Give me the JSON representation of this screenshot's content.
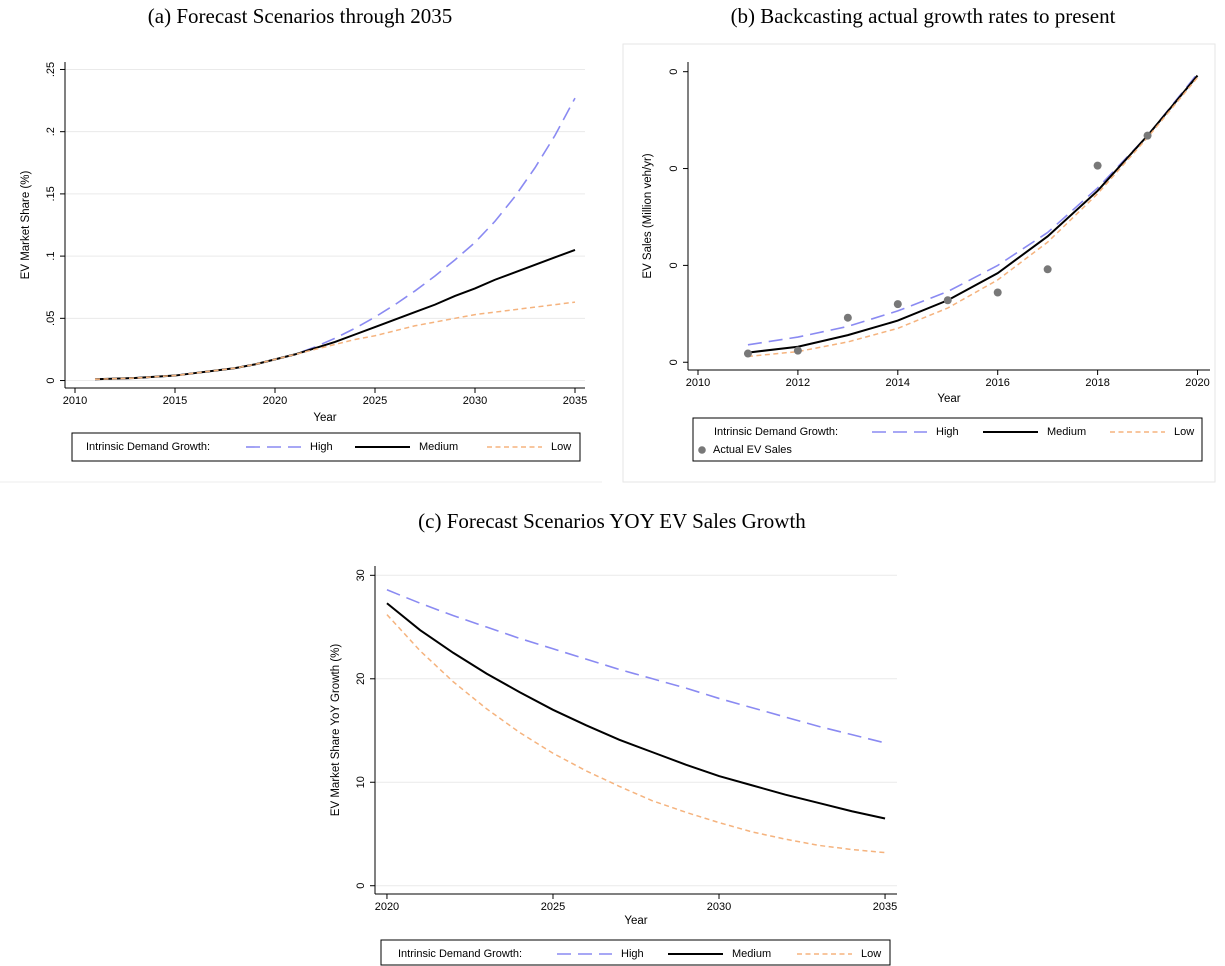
{
  "chart_data": [
    {
      "type": "line",
      "title": "(a) Forecast Scenarios through 2035",
      "xlabel": "Year",
      "ylabel": "EV Market Share (%)",
      "x": [
        2011,
        2012,
        2013,
        2014,
        2015,
        2016,
        2017,
        2018,
        2019,
        2020,
        2021,
        2022,
        2023,
        2024,
        2025,
        2026,
        2027,
        2028,
        2029,
        2030,
        2031,
        2032,
        2033,
        2034,
        2035
      ],
      "xlim": [
        2009.5,
        2035.5
      ],
      "xticks": [
        2010,
        2015,
        2020,
        2025,
        2030,
        2035
      ],
      "ylim": [
        -0.006,
        0.256
      ],
      "yticks": [
        0,
        {
          "value": 0.05,
          "label": ".05"
        },
        {
          "value": 0.1,
          "label": ".1"
        },
        {
          "value": 0.15,
          "label": ".15"
        },
        {
          "value": 0.2,
          "label": ".2"
        },
        {
          "value": 0.25,
          "label": ".25"
        }
      ],
      "grid": true,
      "legend_title": "Intrinsic Demand Growth:",
      "series": [
        {
          "name": "High",
          "color": "#8a8af2",
          "dash": "long",
          "values": [
            0.001,
            0.0015,
            0.002,
            0.003,
            0.004,
            0.006,
            0.008,
            0.01,
            0.013,
            0.017,
            0.021,
            0.027,
            0.034,
            0.042,
            0.051,
            0.061,
            0.072,
            0.084,
            0.097,
            0.111,
            0.128,
            0.148,
            0.171,
            0.197,
            0.227
          ]
        },
        {
          "name": "Medium",
          "color": "#000000",
          "dash": "solid",
          "values": [
            0.001,
            0.0015,
            0.002,
            0.003,
            0.004,
            0.006,
            0.008,
            0.01,
            0.013,
            0.017,
            0.021,
            0.026,
            0.031,
            0.037,
            0.043,
            0.049,
            0.055,
            0.061,
            0.068,
            0.074,
            0.081,
            0.087,
            0.093,
            0.099,
            0.105
          ]
        },
        {
          "name": "Low",
          "color": "#f5b37e",
          "dash": "short",
          "values": [
            0.001,
            0.0015,
            0.002,
            0.003,
            0.004,
            0.006,
            0.008,
            0.01,
            0.013,
            0.017,
            0.021,
            0.025,
            0.029,
            0.033,
            0.036,
            0.04,
            0.044,
            0.047,
            0.05,
            0.053,
            0.055,
            0.057,
            0.059,
            0.061,
            0.063
          ]
        }
      ]
    },
    {
      "type": "line",
      "title": "(b) Backcasting actual growth rates to present",
      "xlabel": "Year",
      "ylabel": "EV Sales (Million veh/yr)",
      "x": [
        2011,
        2012,
        2013,
        2014,
        2015,
        2016,
        2017,
        2018,
        2019,
        2020
      ],
      "xlim": [
        2009.8,
        2020.25
      ],
      "xticks": [
        2010,
        2012,
        2014,
        2016,
        2018,
        2020
      ],
      "ylim": [
        -0.008,
        0.31
      ],
      "yticks": [
        0,
        {
          "value": 0.1,
          "label": "0"
        },
        {
          "value": 0.2,
          "label": "0"
        },
        {
          "value": 0.3,
          "label": "0"
        }
      ],
      "grid": false,
      "legend_title": "Intrinsic Demand Growth:",
      "series": [
        {
          "name": "High",
          "color": "#8a8af2",
          "dash": "long",
          "values": [
            0.018,
            0.026,
            0.037,
            0.053,
            0.073,
            0.1,
            0.134,
            0.18,
            0.234,
            0.298
          ]
        },
        {
          "name": "Medium",
          "color": "#000000",
          "dash": "solid",
          "values": [
            0.01,
            0.016,
            0.028,
            0.043,
            0.064,
            0.092,
            0.13,
            0.177,
            0.234,
            0.296
          ]
        },
        {
          "name": "Low",
          "color": "#f5b37e",
          "dash": "short",
          "values": [
            0.006,
            0.011,
            0.021,
            0.035,
            0.056,
            0.085,
            0.124,
            0.174,
            0.232,
            0.294
          ]
        },
        {
          "name": "Actual EV Sales",
          "color": "#787878",
          "kind": "scatter",
          "values": [
            0.009,
            0.012,
            0.046,
            0.06,
            0.064,
            0.072,
            0.096,
            0.203,
            0.234,
            null
          ]
        }
      ]
    },
    {
      "type": "line",
      "title": "(c) Forecast Scenarios YOY EV Sales Growth",
      "xlabel": "Year",
      "ylabel": "EV Market Share YoY Growth (%)",
      "x": [
        2020,
        2021,
        2022,
        2023,
        2024,
        2025,
        2026,
        2027,
        2028,
        2029,
        2030,
        2031,
        2032,
        2033,
        2034,
        2035
      ],
      "xlim": [
        2019.64,
        2035.36
      ],
      "xticks": [
        2020,
        2025,
        2030,
        2035
      ],
      "ylim": [
        -0.8,
        30.9
      ],
      "yticks": [
        0,
        10,
        20,
        30
      ],
      "grid": true,
      "legend_title": "Intrinsic Demand Growth:",
      "series": [
        {
          "name": "High",
          "color": "#8a8af2",
          "dash": "long",
          "values": [
            28.6,
            27.3,
            26.1,
            25.0,
            23.9,
            22.9,
            21.9,
            20.9,
            20.0,
            19.1,
            18.1,
            17.2,
            16.3,
            15.4,
            14.6,
            13.8
          ]
        },
        {
          "name": "Medium",
          "color": "#000000",
          "dash": "solid",
          "values": [
            27.3,
            24.7,
            22.5,
            20.5,
            18.7,
            17.0,
            15.5,
            14.1,
            12.9,
            11.7,
            10.6,
            9.7,
            8.8,
            8.0,
            7.2,
            6.5
          ]
        },
        {
          "name": "Low",
          "color": "#f5b37e",
          "dash": "short",
          "values": [
            26.2,
            22.7,
            19.7,
            17.1,
            14.8,
            12.8,
            11.1,
            9.6,
            8.2,
            7.1,
            6.1,
            5.2,
            4.5,
            3.9,
            3.5,
            3.2
          ]
        }
      ]
    }
  ]
}
